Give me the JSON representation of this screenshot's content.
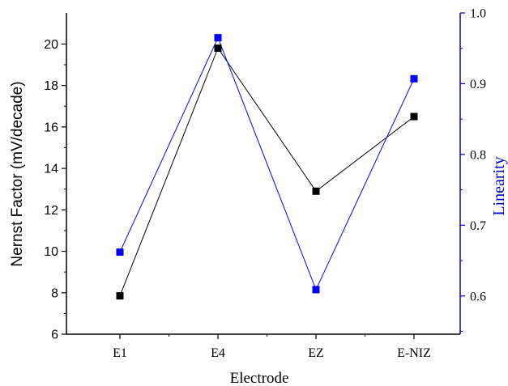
{
  "chart_data": {
    "type": "line",
    "categories": [
      "E1",
      "E4",
      "EZ",
      "E-NIZ"
    ],
    "xlabel": "Electrode",
    "y_left": {
      "label": "Nernst Factor (mV/decade)",
      "lim": [
        6,
        21.5
      ],
      "ticks": [
        6,
        8,
        10,
        12,
        14,
        16,
        18,
        20
      ],
      "tick_labels": [
        "6",
        "8",
        "10",
        "12",
        "14",
        "16",
        "18",
        "20"
      ]
    },
    "y_right": {
      "label": "Linearity",
      "lim": [
        0.546,
        1.0
      ],
      "ticks": [
        0.6,
        0.7,
        0.8,
        0.9,
        1.0
      ],
      "tick_labels": [
        "0.6",
        "0.7",
        "0.8",
        "0.9",
        "1.0"
      ]
    },
    "series": [
      {
        "axis": "left",
        "color": "#000000",
        "marker": "square",
        "values": [
          7.85,
          19.8,
          12.9,
          16.5
        ]
      },
      {
        "axis": "right",
        "color": "#0000ff",
        "marker": "square",
        "values": [
          0.662,
          0.965,
          0.609,
          0.907
        ]
      }
    ],
    "right_axis_color": "#0000cc",
    "grid": false
  }
}
